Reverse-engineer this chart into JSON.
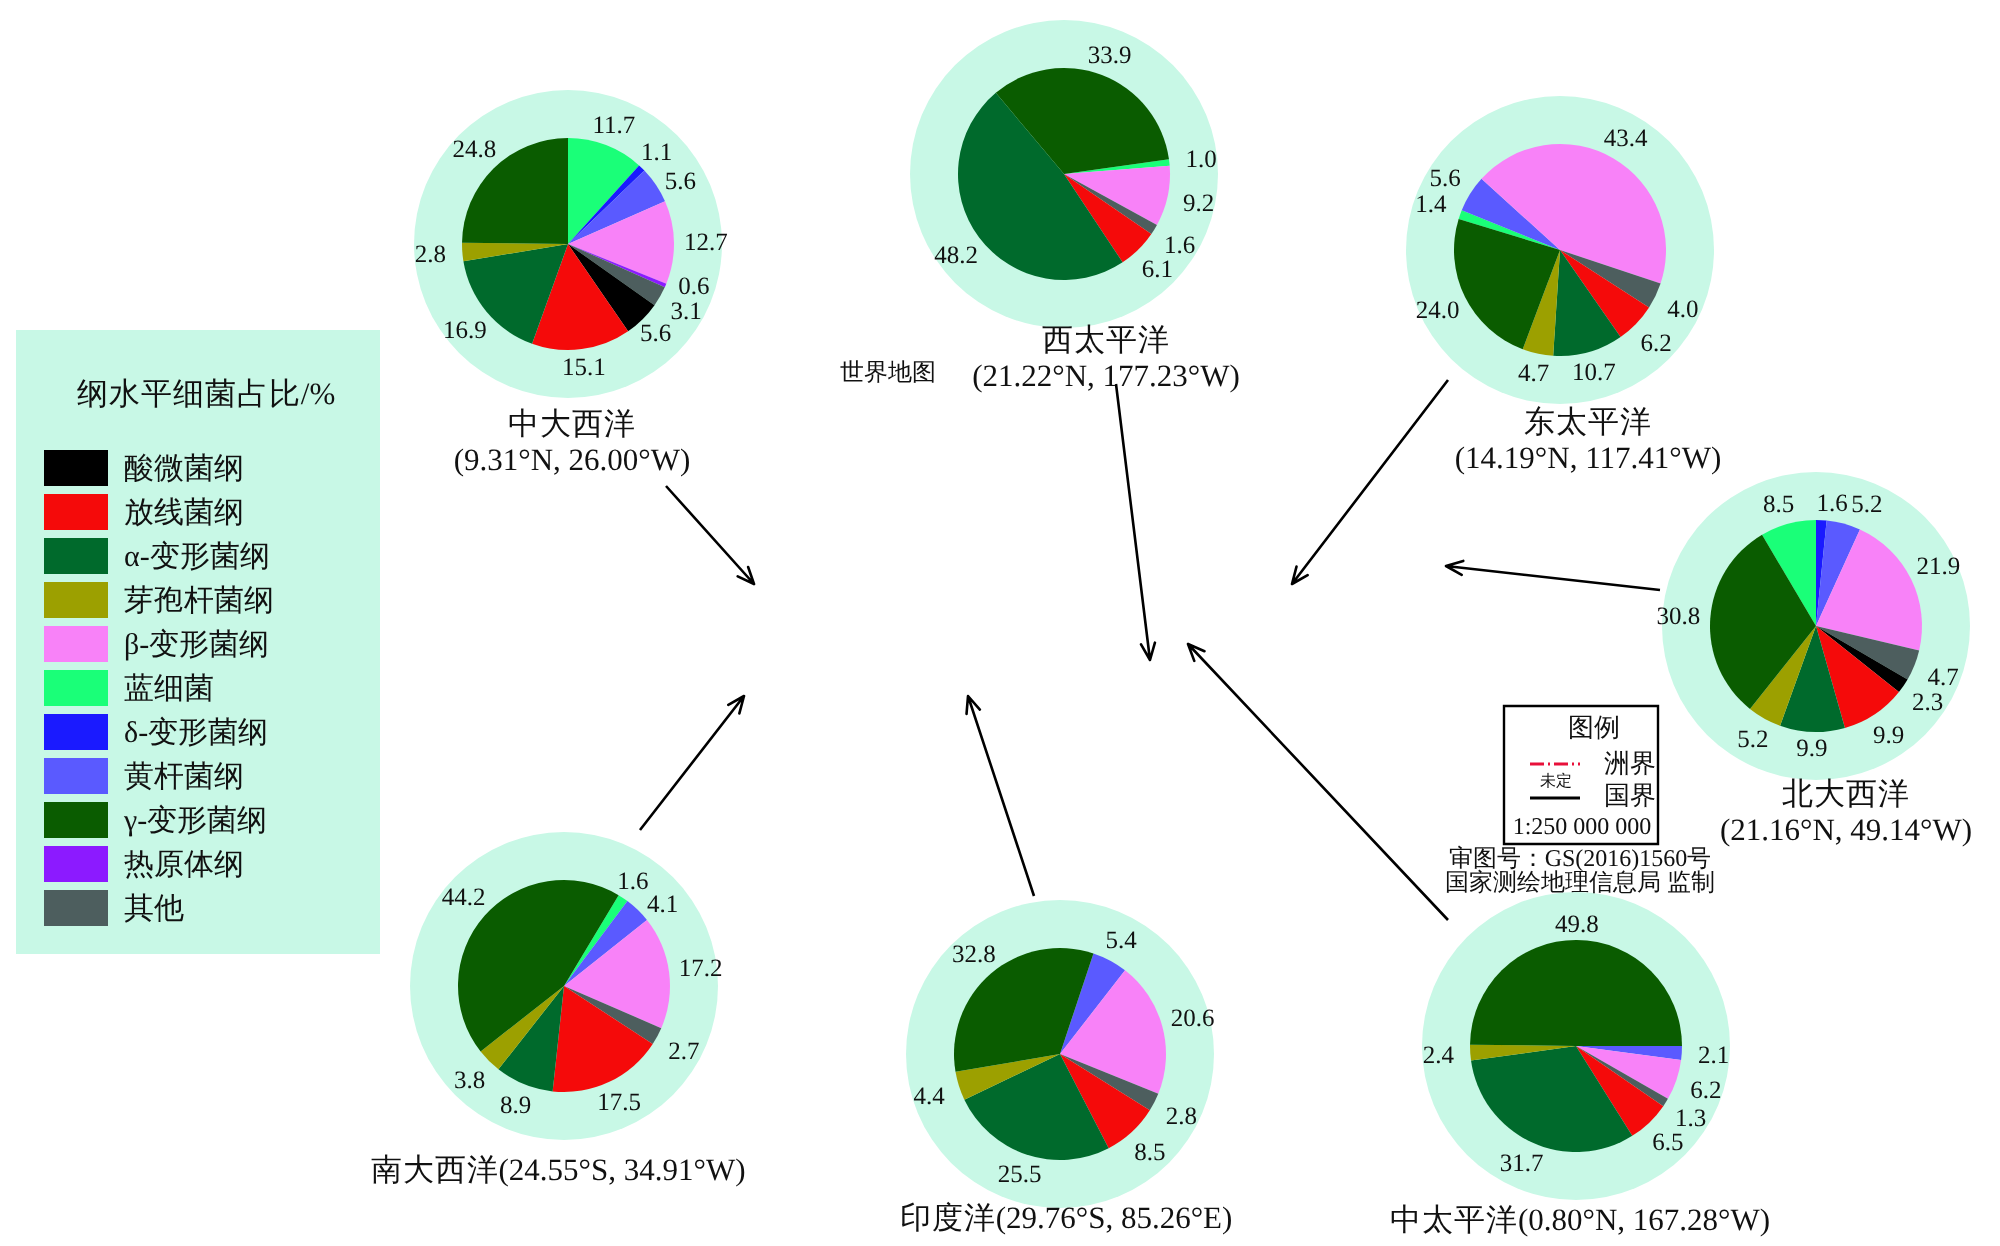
{
  "chart_data": [
    {
      "type": "pie",
      "title": "中大西洋",
      "subtitle": "(9.31°N, 26.00°W)",
      "legend_title": "纲水平细菌占比/%",
      "legend": "left",
      "categories": [
        "蓝细菌",
        "δ-变形菌纲",
        "黄杆菌纲",
        "β-变形菌纲",
        "热原体纲",
        "其他",
        "酸微菌纲",
        "放线菌纲",
        "α-变形菌纲",
        "芽孢杆菌纲",
        "γ-变形菌纲"
      ],
      "values": [
        11.7,
        1.1,
        5.6,
        12.7,
        0.6,
        3.1,
        5.6,
        15.1,
        16.9,
        2.8,
        24.8
      ],
      "colors": [
        "#1aff78",
        "#1a1aff",
        "#5a5aff",
        "#f882f8",
        "#8c1aff",
        "#4d5e5e",
        "#000000",
        "#f50a0a",
        "#006a2c",
        "#9ca000",
        "#0a5c00"
      ],
      "data_labels": true
    },
    {
      "type": "pie",
      "title": "西太平洋",
      "subtitle": "(21.22°N, 177.23°W)",
      "categories": [
        null,
        null,
        null,
        null,
        null,
        null
      ],
      "values": [
        1.0,
        9.2,
        1.6,
        6.1,
        48.2,
        33.9
      ],
      "value_labels": [
        "1.0",
        "9.2",
        "1.6",
        "6.1",
        "48.2",
        "33.9"
      ],
      "colors": [
        "#1aff78",
        "#f882f8",
        "#4d5e5e",
        "#f50a0a",
        "#006a2c",
        "#0a5c00"
      ]
    },
    {
      "type": "pie",
      "title": "东太平洋",
      "subtitle": "(14.19°N, 117.41°W)",
      "categories": [
        null,
        null,
        null,
        null,
        null,
        null,
        null,
        null
      ],
      "values": [
        1.4,
        5.6,
        43.4,
        4.0,
        6.2,
        10.7,
        4.7,
        24.0
      ],
      "value_labels": [
        "1.4",
        "5.6",
        "43.4",
        "4.0",
        "6.2",
        "10.7",
        "4.7",
        "24.0"
      ],
      "colors": [
        "#1aff78",
        "#5a5aff",
        "#f882f8",
        "#4d5e5e",
        "#f50a0a",
        "#006a2c",
        "#9ca000",
        "#0a5c00"
      ]
    },
    {
      "type": "pie",
      "title": "北大西洋",
      "subtitle": "(21.16°N, 49.14°W)",
      "categories": [
        null,
        null,
        null,
        null,
        null,
        null,
        null,
        null,
        null,
        null
      ],
      "values": [
        8.5,
        1.6,
        5.2,
        21.9,
        4.7,
        2.3,
        9.9,
        9.9,
        5.2,
        30.8
      ],
      "colors": [
        "#1aff78",
        "#1a1aff",
        "#5a5aff",
        "#f882f8",
        "#4d5e5e",
        "#000000",
        "#f50a0a",
        "#006a2c",
        "#9ca000",
        "#0a5c00"
      ],
      "data_labels": true
    },
    {
      "type": "pie",
      "title": "南大西洋(24.55°S, 34.91°W)",
      "categories": [
        null,
        null,
        null,
        null,
        null,
        null,
        null,
        null
      ],
      "values": [
        1.6,
        4.1,
        17.2,
        2.7,
        17.5,
        8.9,
        3.8,
        44.2
      ],
      "colors": [
        "#1aff78",
        "#5a5aff",
        "#f882f8",
        "#4d5e5e",
        "#f50a0a",
        "#006a2c",
        "#9ca000",
        "#0a5c00"
      ],
      "data_labels": true
    },
    {
      "type": "pie",
      "title": "印度洋(29.76°S, 85.26°E)",
      "categories": [
        null,
        null,
        null,
        null,
        null,
        null,
        null
      ],
      "values": [
        5.4,
        20.6,
        2.8,
        8.5,
        25.5,
        4.4,
        32.8
      ],
      "colors": [
        "#5a5aff",
        "#f882f8",
        "#4d5e5e",
        "#f50a0a",
        "#006a2c",
        "#9ca000",
        "#0a5c00"
      ],
      "data_labels": true
    },
    {
      "type": "pie",
      "title": "中太平洋(0.80°N, 167.28°W)",
      "categories": [
        null,
        null,
        null,
        null,
        null,
        null,
        null
      ],
      "values": [
        2.1,
        6.2,
        1.3,
        6.5,
        31.7,
        2.4,
        49.8
      ],
      "colors": [
        "#5a5aff",
        "#f882f8",
        "#4d5e5e",
        "#f50a0a",
        "#006a2c",
        "#9ca000",
        "#0a5c00"
      ],
      "data_labels": true
    },
    {
      "type": "other",
      "title": "世界地图",
      "annotations": [
        "图例",
        "洲界",
        "未定",
        "国界",
        "1:250 000 000",
        "审图号：GS(2016)1560号",
        "国家测绘地理信息局 监制"
      ]
    }
  ]
}
